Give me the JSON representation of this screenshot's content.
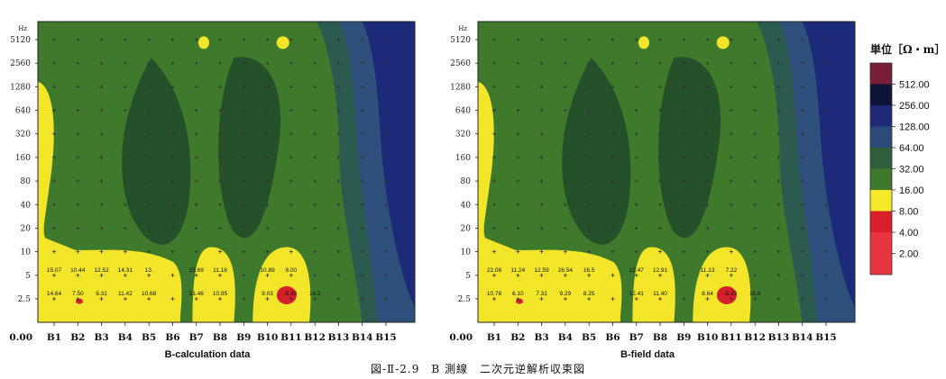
{
  "chart_data": [
    {
      "type": "heatmap",
      "title": "",
      "xlabel": "B-calculation data",
      "ylabel": "",
      "y_unit": "Hz",
      "origin_label": "0.00",
      "categories": [
        "B1",
        "B2",
        "B3",
        "B4",
        "B5",
        "B6",
        "B7",
        "B8",
        "B9",
        "B10",
        "B11",
        "B12",
        "B13",
        "B14",
        "B15"
      ],
      "y_ticks": [
        "5120",
        "2560",
        "1280",
        "640",
        "320",
        "160",
        "80",
        "40",
        "20",
        "10",
        "5",
        "2.5"
      ],
      "cell_values": {
        "row_5Hz": [
          "15.07",
          "10.44",
          "12.52",
          "14.31",
          "13.",
          "",
          "15.69",
          "11.18",
          "",
          "10.89",
          "9.00",
          "",
          "",
          "",
          ""
        ],
        "row_2.5Hz": [
          "14.64",
          "7.50",
          "9.31",
          "11.42",
          "10.68",
          "",
          "13.46",
          "10.95",
          "",
          "9.03",
          "6.38",
          "14.3",
          "",
          "",
          ""
        ]
      }
    },
    {
      "type": "heatmap",
      "title": "",
      "xlabel": "B-field data",
      "ylabel": "",
      "y_unit": "Hz",
      "origin_label": "0.00",
      "categories": [
        "B1",
        "B2",
        "B3",
        "B4",
        "B5",
        "B6",
        "B7",
        "B8",
        "B9",
        "B10",
        "B11",
        "B12",
        "B13",
        "B14",
        "B15"
      ],
      "y_ticks": [
        "5120",
        "2560",
        "1280",
        "640",
        "320",
        "160",
        "80",
        "40",
        "20",
        "10",
        "5",
        "2.5"
      ],
      "cell_values": {
        "row_5Hz": [
          "22.08",
          "11.24",
          "12.59",
          "26.54",
          "16.5",
          "",
          "12.47",
          "12.91",
          "",
          "11.13",
          "7.22",
          "",
          "",
          "",
          ""
        ],
        "row_2.5Hz": [
          "10.78",
          "6.10",
          "7.31",
          "9.29",
          "8.25",
          "",
          "12.41",
          "11.40",
          "",
          "6.64",
          "6.33",
          "16.6",
          "",
          "",
          ""
        ]
      }
    }
  ],
  "legend": {
    "title": "単位［Ω・m］",
    "levels": [
      "512.00",
      "256.00",
      "128.00",
      "64.00",
      "32.00",
      "16.00",
      "8.00",
      "4.00",
      "2.00"
    ],
    "colors": {
      "above_512": "#7a1f3a",
      "512": "#101238",
      "256": "#1e2a78",
      "128": "#2b4a78",
      "64": "#2f5f3a",
      "32": "#3f7a2c",
      "16": "#f5e92a",
      "8": "#d81f2a",
      "4": "#e8343c",
      "2": "#e8343c"
    }
  },
  "colors": {
    "deep_green": "#24502a",
    "green": "#3f7a2c",
    "teal": "#2d5a4e",
    "slate_blue": "#2f4f7c",
    "navy": "#1d2a7a",
    "yellow": "#f3e62a",
    "red": "#d3202b"
  },
  "caption": "図-Ⅱ-2.9　B 測線　二次元逆解析収束図"
}
